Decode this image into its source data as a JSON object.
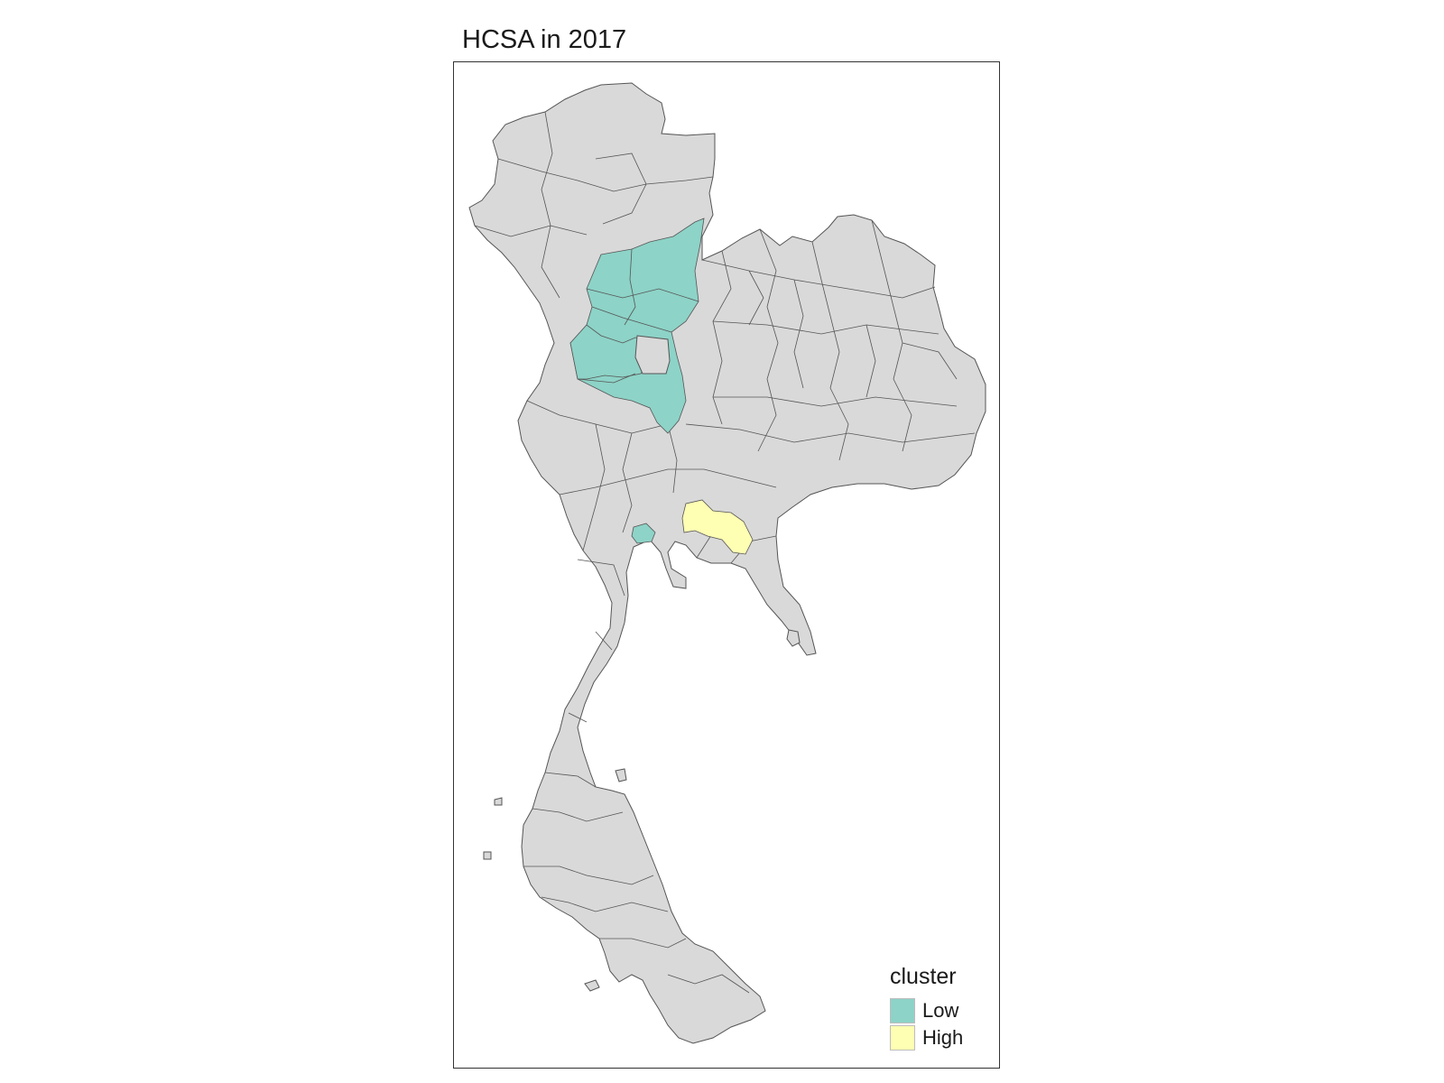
{
  "title": "HCSA in 2017",
  "map": {
    "base_fill": "#d9d9d9",
    "border_color": "#555555"
  },
  "legend": {
    "title": "cluster",
    "items": [
      {
        "label": "Low",
        "color": "#8dd3c7"
      },
      {
        "label": "High",
        "color": "#ffffb3"
      }
    ]
  }
}
